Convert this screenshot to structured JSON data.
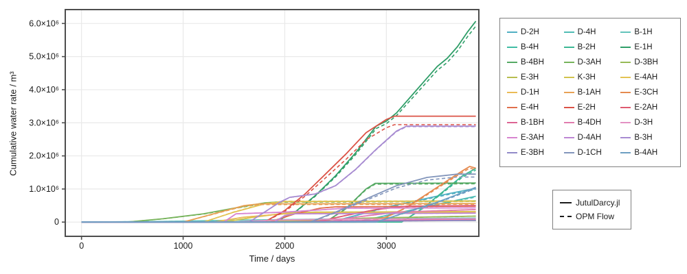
{
  "chart_data": {
    "type": "line",
    "title": "",
    "xlabel": "Time / days",
    "ylabel": "Cumulative water rate / m³",
    "x_ticks": [
      0,
      1000,
      2000,
      3000
    ],
    "y_ticks": [
      {
        "value": 0,
        "label": "0"
      },
      {
        "value": 1000000,
        "label": "1.0×10⁶"
      },
      {
        "value": 2000000,
        "label": "2.0×10⁶"
      },
      {
        "value": 3000000,
        "label": "3.0×10⁶"
      },
      {
        "value": 4000000,
        "label": "4.0×10⁶"
      },
      {
        "value": 5000000,
        "label": "5.0×10⁶"
      },
      {
        "value": 6000000,
        "label": "6.0×10⁶"
      }
    ],
    "xlim": [
      -160,
      3910
    ],
    "ylim": [
      -430000,
      6420000
    ],
    "grid": true,
    "legend_position": "right",
    "units": "m3",
    "series": [
      {
        "name": "D-2H",
        "color": "#4FAFC2",
        "opm_scale": 0.97,
        "points": [
          [
            0,
            0
          ],
          [
            2450,
            0
          ],
          [
            2700,
            200000.0
          ],
          [
            3000,
            450000.0
          ],
          [
            3300,
            650000.0
          ],
          [
            3600,
            850000.0
          ],
          [
            3880,
            1020000.0
          ]
        ]
      },
      {
        "name": "D-4H",
        "color": "#4FBCB4",
        "opm_scale": 0.97,
        "points": [
          [
            0,
            0
          ],
          [
            2700,
            0
          ],
          [
            3000,
            200000.0
          ],
          [
            3300,
            400000.0
          ],
          [
            3600,
            600000.0
          ],
          [
            3880,
            780000.0
          ]
        ]
      },
      {
        "name": "B-1H",
        "color": "#62C3BB",
        "opm_scale": 1.0,
        "points": [
          [
            0,
            0
          ],
          [
            800,
            20000.0
          ],
          [
            1600,
            60000.0
          ],
          [
            2400,
            90000.0
          ],
          [
            3880,
            120000.0
          ]
        ]
      },
      {
        "name": "B-4H",
        "color": "#3FBCA4",
        "opm_scale": 1.0,
        "points": [
          [
            0,
            0
          ],
          [
            1500,
            0
          ],
          [
            2200,
            30000.0
          ],
          [
            3880,
            50000.0
          ]
        ]
      },
      {
        "name": "B-2H",
        "color": "#3BB793",
        "opm_scale": 0.97,
        "points": [
          [
            0,
            0
          ],
          [
            3150,
            0
          ],
          [
            3350,
            400000.0
          ],
          [
            3550,
            900000.0
          ],
          [
            3750,
            1400000.0
          ],
          [
            3880,
            1620000.0
          ]
        ]
      },
      {
        "name": "E-1H",
        "color": "#2F9E68",
        "opm_scale": 0.975,
        "points": [
          [
            0,
            0
          ],
          [
            1900,
            0
          ],
          [
            2100,
            300000.0
          ],
          [
            2300,
            800000.0
          ],
          [
            2500,
            1400000.0
          ],
          [
            2700,
            2100000.0
          ],
          [
            2900,
            2900000.0
          ],
          [
            3000,
            3050000.0
          ],
          [
            3100,
            3300000.0
          ],
          [
            3300,
            4000000.0
          ],
          [
            3500,
            4700000.0
          ],
          [
            3600,
            4950000.0
          ],
          [
            3700,
            5300000.0
          ],
          [
            3800,
            5750000.0
          ],
          [
            3880,
            6070000.0
          ]
        ]
      },
      {
        "name": "B-4BH",
        "color": "#55A963",
        "opm_scale": 0.98,
        "points": [
          [
            0,
            0
          ],
          [
            2400,
            0
          ],
          [
            2600,
            400000.0
          ],
          [
            2800,
            1000000.0
          ],
          [
            2890,
            1170000.0
          ],
          [
            3880,
            1180000.0
          ]
        ]
      },
      {
        "name": "D-3AH",
        "color": "#76B35B",
        "opm_scale": 0.97,
        "points": [
          [
            0,
            0
          ],
          [
            450,
            0
          ],
          [
            800,
            100000.0
          ],
          [
            1200,
            250000.0
          ],
          [
            1500,
            420000.0
          ],
          [
            1800,
            580000.0
          ],
          [
            2000,
            620000.0
          ],
          [
            3880,
            640000.0
          ]
        ]
      },
      {
        "name": "D-3BH",
        "color": "#97BA56",
        "opm_scale": 1.0,
        "points": [
          [
            0,
            0
          ],
          [
            1800,
            0
          ],
          [
            2200,
            50000.0
          ],
          [
            2800,
            120000.0
          ],
          [
            3880,
            180000.0
          ]
        ]
      },
      {
        "name": "E-3H",
        "color": "#B7BD4E",
        "opm_scale": 1.0,
        "points": [
          [
            0,
            0
          ],
          [
            1600,
            0
          ],
          [
            2000,
            30000.0
          ],
          [
            3880,
            45000.0
          ]
        ]
      },
      {
        "name": "K-3H",
        "color": "#D1C34C",
        "opm_scale": 1.0,
        "points": [
          [
            0,
            0
          ],
          [
            1400,
            0
          ],
          [
            1700,
            150000.0
          ],
          [
            2000,
            270000.0
          ],
          [
            2300,
            300000.0
          ],
          [
            3880,
            320000.0
          ]
        ]
      },
      {
        "name": "E-4AH",
        "color": "#E3C353",
        "opm_scale": 1.02,
        "points": [
          [
            0,
            0
          ],
          [
            1200,
            0
          ],
          [
            1500,
            300000.0
          ],
          [
            1800,
            550000.0
          ],
          [
            2000,
            620000.0
          ],
          [
            3880,
            630000.0
          ]
        ]
      },
      {
        "name": "D-1H",
        "color": "#EABB55",
        "opm_scale": 1.0,
        "points": [
          [
            0,
            0
          ],
          [
            1300,
            0
          ],
          [
            1600,
            150000.0
          ],
          [
            2000,
            250000.0
          ],
          [
            2500,
            280000.0
          ],
          [
            3880,
            300000.0
          ]
        ]
      },
      {
        "name": "B-1AH",
        "color": "#E7A155",
        "opm_scale": 0.96,
        "points": [
          [
            0,
            0
          ],
          [
            1000,
            0
          ],
          [
            1300,
            250000.0
          ],
          [
            1600,
            500000.0
          ],
          [
            1750,
            550000.0
          ],
          [
            3880,
            560000.0
          ]
        ]
      },
      {
        "name": "E-3CH",
        "color": "#E58A4F",
        "opm_scale": 0.97,
        "points": [
          [
            0,
            0
          ],
          [
            2800,
            0
          ],
          [
            3000,
            150000.0
          ],
          [
            3200,
            450000.0
          ],
          [
            3400,
            850000.0
          ],
          [
            3600,
            1250000.0
          ],
          [
            3750,
            1550000.0
          ],
          [
            3820,
            1680000.0
          ],
          [
            3880,
            1630000.0
          ]
        ]
      },
      {
        "name": "E-4H",
        "color": "#E06F4C",
        "opm_scale": 1.0,
        "points": [
          [
            0,
            0
          ],
          [
            1850,
            0
          ],
          [
            2100,
            250000.0
          ],
          [
            2350,
            420000.0
          ],
          [
            2500,
            460000.0
          ],
          [
            3880,
            480000.0
          ]
        ]
      },
      {
        "name": "E-2H",
        "color": "#DB5246",
        "opm_scale": 0.92,
        "points": [
          [
            0,
            0
          ],
          [
            1800,
            0
          ],
          [
            2000,
            350000.0
          ],
          [
            2200,
            850000.0
          ],
          [
            2400,
            1450000.0
          ],
          [
            2600,
            2050000.0
          ],
          [
            2800,
            2700000.0
          ],
          [
            3000,
            3100000.0
          ],
          [
            3080,
            3200000.0
          ],
          [
            3880,
            3200000.0
          ]
        ]
      },
      {
        "name": "E-2AH",
        "color": "#DE5A70",
        "opm_scale": 1.0,
        "points": [
          [
            0,
            0
          ],
          [
            2300,
            0
          ],
          [
            2600,
            200000.0
          ],
          [
            2900,
            380000.0
          ],
          [
            3200,
            480000.0
          ],
          [
            3880,
            500000.0
          ]
        ]
      },
      {
        "name": "B-1BH",
        "color": "#DC6392",
        "opm_scale": 1.0,
        "points": [
          [
            0,
            0
          ],
          [
            2000,
            0
          ],
          [
            2500,
            40000.0
          ],
          [
            3880,
            70000.0
          ]
        ]
      },
      {
        "name": "B-4DH",
        "color": "#E07BAD",
        "opm_scale": 1.0,
        "points": [
          [
            0,
            0
          ],
          [
            2400,
            0
          ],
          [
            2700,
            150000.0
          ],
          [
            3100,
            300000.0
          ],
          [
            3880,
            380000.0
          ]
        ]
      },
      {
        "name": "D-3H",
        "color": "#E391C3",
        "opm_scale": 1.0,
        "points": [
          [
            0,
            0
          ],
          [
            1500,
            0
          ],
          [
            1900,
            60000.0
          ],
          [
            2600,
            90000.0
          ],
          [
            3880,
            100000.0
          ]
        ]
      },
      {
        "name": "E-3AH",
        "color": "#D784CF",
        "opm_scale": 1.0,
        "points": [
          [
            0,
            0
          ],
          [
            1400,
            0
          ],
          [
            1520,
            250000.0
          ],
          [
            2000,
            300000.0
          ],
          [
            2400,
            380000.0
          ],
          [
            2600,
            420000.0
          ],
          [
            3880,
            430000.0
          ]
        ]
      },
      {
        "name": "D-4AH",
        "color": "#BD86D3",
        "opm_scale": 1.0,
        "points": [
          [
            0,
            0
          ],
          [
            1900,
            0
          ],
          [
            2000,
            200000.0
          ],
          [
            2100,
            250000.0
          ],
          [
            3880,
            270000.0
          ]
        ]
      },
      {
        "name": "B-3H",
        "color": "#A78BD1",
        "opm_scale": 0.995,
        "points": [
          [
            0,
            0
          ],
          [
            1650,
            0
          ],
          [
            1800,
            300000.0
          ],
          [
            1950,
            600000.0
          ],
          [
            2050,
            750000.0
          ],
          [
            2300,
            850000.0
          ],
          [
            2500,
            1100000.0
          ],
          [
            2700,
            1600000.0
          ],
          [
            2900,
            2200000.0
          ],
          [
            3100,
            2750000.0
          ],
          [
            3200,
            2900000.0
          ],
          [
            3880,
            2900000.0
          ]
        ]
      },
      {
        "name": "E-3BH",
        "color": "#9189C8",
        "opm_scale": 1.0,
        "points": [
          [
            0,
            0
          ],
          [
            2100,
            0
          ],
          [
            2800,
            30000.0
          ],
          [
            3880,
            50000.0
          ]
        ]
      },
      {
        "name": "D-1CH",
        "color": "#8295BB",
        "opm_scale": 0.94,
        "points": [
          [
            0,
            0
          ],
          [
            2250,
            0
          ],
          [
            2500,
            300000.0
          ],
          [
            2800,
            700000.0
          ],
          [
            3100,
            1100000.0
          ],
          [
            3400,
            1350000.0
          ],
          [
            3700,
            1450000.0
          ],
          [
            3880,
            1450000.0
          ]
        ]
      },
      {
        "name": "B-4AH",
        "color": "#6C9EC2",
        "opm_scale": 0.97,
        "points": [
          [
            0,
            0
          ],
          [
            2900,
            0
          ],
          [
            3200,
            300000.0
          ],
          [
            3500,
            600000.0
          ],
          [
            3800,
            950000.0
          ],
          [
            3880,
            1050000.0
          ]
        ]
      }
    ]
  },
  "legend_models": [
    {
      "label": "JutulDarcy.jl",
      "style": "solid"
    },
    {
      "label": "OPM Flow",
      "style": "dashed"
    }
  ],
  "colors": {
    "spine": "#4d4d4d",
    "grid": "#e9e9e9",
    "text": "#1a1a1a",
    "background": "#ffffff",
    "legend_border": "#7f7f7f"
  }
}
